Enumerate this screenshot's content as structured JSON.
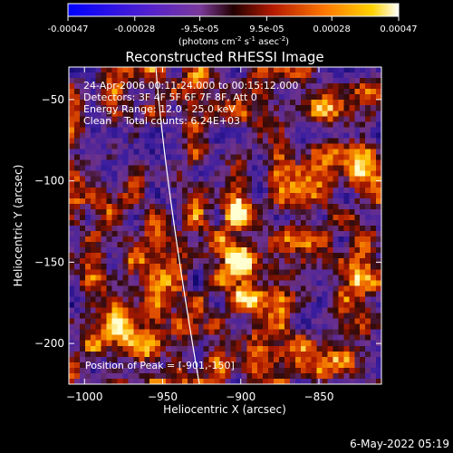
{
  "colorbar": {
    "ticks": [
      "-0.00047",
      "-0.00028",
      "-9.5e-05",
      "9.5e-05",
      "0.00028",
      "0.00047"
    ],
    "units_main": "(photons cm",
    "units_exp1": "-2",
    "units_mid": " s",
    "units_exp2": "-1",
    "units_tail": " asec",
    "units_exp3": "-2",
    "units_close": ")"
  },
  "chart_data": {
    "type": "heatmap",
    "title": "Reconstructed RHESSI Image",
    "xlabel": "Heliocentric X (arcsec)",
    "ylabel": "Heliocentric Y (arcsec)",
    "xlim": [
      -1010,
      -810
    ],
    "ylim": [
      -225,
      -30
    ],
    "xticks": [
      -1000,
      -950,
      -900,
      -850
    ],
    "yticks": [
      -50,
      -100,
      -150,
      -200
    ],
    "colorbar_range": [
      -0.00047,
      0.00047
    ],
    "peak": [
      -901,
      -150
    ],
    "annotations": [
      "24-Apr-2006 00:11:24.000 to 00:15:12.000",
      "Detectors: 3F 4F 5F 6F 7F 8F, Att 0",
      "Energy Range: 12.0 - 25.0 keV",
      "Clean    Total counts: 6.24E+03"
    ],
    "peak_label": "Position of Peak = [-901,-150]"
  },
  "timestamp": "6-May-2022 05:19"
}
